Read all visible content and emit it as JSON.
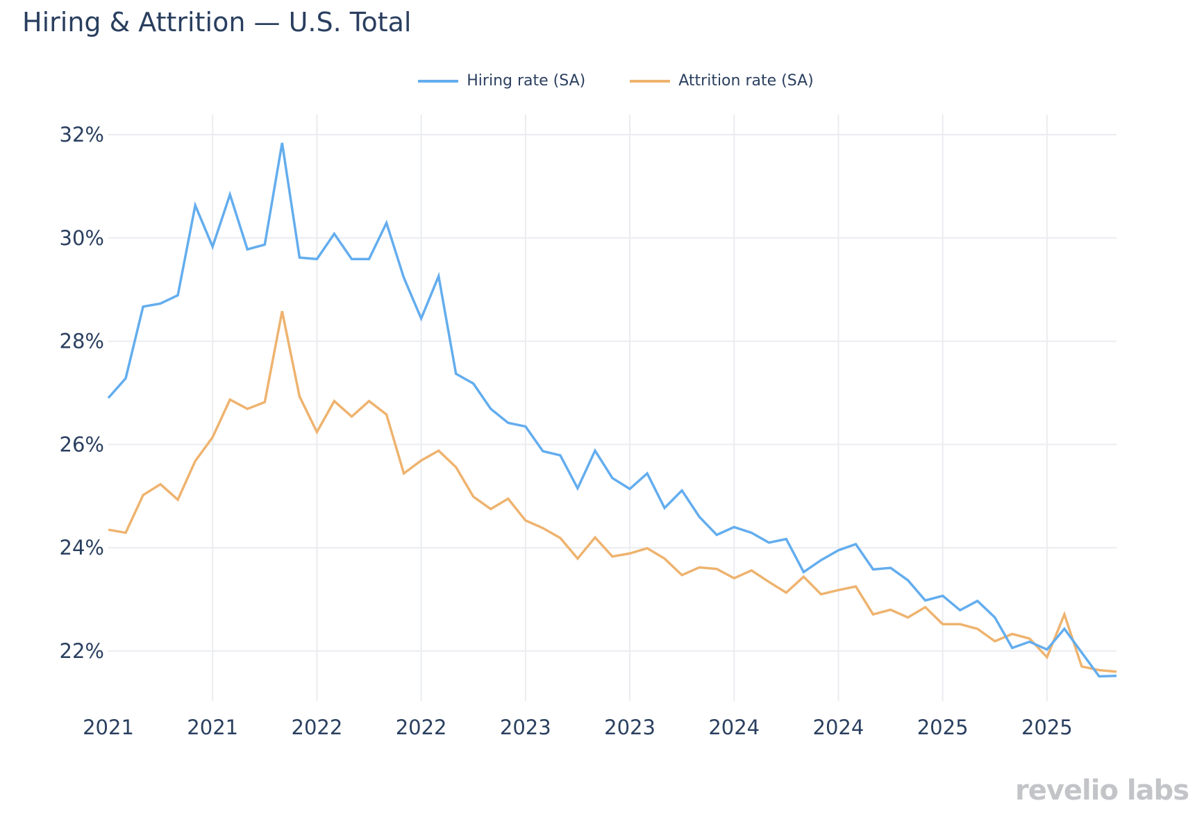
{
  "colors": {
    "hiring": "#63adee",
    "attrition": "#eeb36f",
    "grid": "#ebecf0",
    "text": "#2a3f5f",
    "brand": "#c3c4c8"
  },
  "brand": "revelio labs",
  "chart_data": {
    "type": "line",
    "title": "Hiring & Attrition — U.S. Total",
    "xlabel": "",
    "ylabel": "",
    "ylim": [
      21.05,
      32.4
    ],
    "yticks": [
      22,
      24,
      26,
      28,
      30,
      32
    ],
    "ytick_labels": [
      "22%",
      "24%",
      "26%",
      "28%",
      "30%",
      "32%"
    ],
    "xtick_labels": [
      "2021",
      "2021",
      "2022",
      "2022",
      "2023",
      "2023",
      "2024",
      "2024",
      "2025",
      "2025"
    ],
    "xtick_every_n_months": 6,
    "x_start": "2021-01",
    "grid": true,
    "legend_position": "top-center",
    "series": [
      {
        "name": "Hiring rate (SA)",
        "values": [
          26.9,
          27.28,
          28.67,
          28.73,
          28.89,
          30.63,
          29.83,
          30.84,
          29.78,
          29.87,
          31.84,
          29.62,
          29.59,
          30.08,
          29.59,
          29.59,
          30.29,
          29.23,
          28.44,
          29.26,
          27.37,
          27.18,
          26.69,
          26.42,
          26.35,
          25.87,
          25.79,
          25.15,
          25.88,
          25.35,
          25.14,
          25.44,
          24.77,
          25.11,
          24.6,
          24.25,
          24.4,
          24.29,
          24.1,
          24.17,
          23.53,
          23.76,
          23.95,
          24.07,
          23.58,
          23.61,
          23.37,
          22.98,
          23.07,
          22.79,
          22.97,
          22.65,
          22.06,
          22.18,
          22.03,
          22.43,
          21.97,
          21.51,
          21.52
        ]
      },
      {
        "name": "Attrition rate (SA)",
        "values": [
          24.35,
          24.29,
          25.02,
          25.23,
          24.93,
          25.68,
          26.14,
          26.87,
          26.69,
          26.82,
          28.58,
          26.93,
          26.24,
          26.84,
          26.54,
          26.84,
          26.58,
          25.44,
          25.69,
          25.88,
          25.56,
          24.99,
          24.75,
          24.95,
          24.53,
          24.38,
          24.19,
          23.79,
          24.2,
          23.83,
          23.89,
          23.99,
          23.79,
          23.47,
          23.62,
          23.59,
          23.41,
          23.56,
          23.34,
          23.13,
          23.44,
          23.1,
          23.18,
          23.25,
          22.71,
          22.8,
          22.65,
          22.85,
          22.52,
          22.52,
          22.43,
          22.19,
          22.33,
          22.24,
          21.88,
          22.71,
          21.7,
          21.63,
          21.6
        ]
      }
    ]
  }
}
